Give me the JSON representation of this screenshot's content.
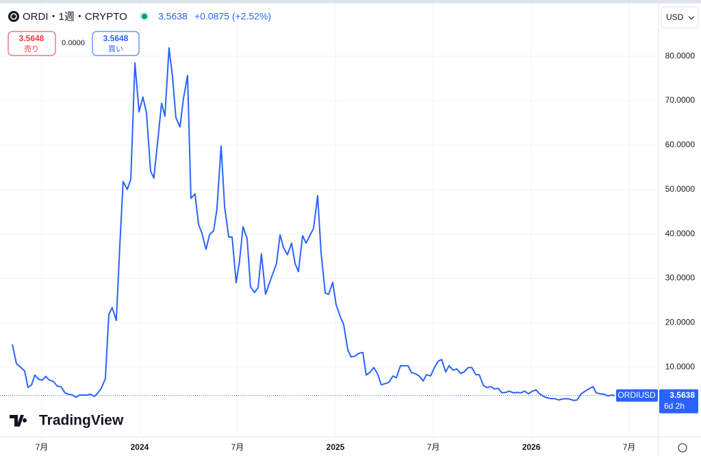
{
  "chart_data": {
    "type": "line",
    "title": "ORDI・1週・CRYPTO",
    "price": "3.5638",
    "change": "+0.0875 (+2.52%)",
    "sell_price": "3.5648",
    "sell_label": "売り",
    "spread": "0.0000",
    "buy_price": "3.5648",
    "buy_label": "買い",
    "currency": "USD",
    "symbol_tag": "ORDIUSD",
    "price_tag": "3.5638",
    "countdown": "6d 2h",
    "brand": "TradingView",
    "color": "#2962ff",
    "x": [
      2023.35,
      2023.371,
      2023.392,
      2023.413,
      2023.43,
      2023.448,
      2023.465,
      2023.486,
      2023.503,
      2023.521,
      2023.538,
      2023.559,
      2023.58,
      2023.598,
      2023.619,
      2023.636,
      2023.657,
      2023.675,
      2023.692,
      2023.713,
      2023.731,
      2023.748,
      2023.769,
      2023.787,
      2023.804,
      2023.825,
      2023.843,
      2023.86,
      2023.881,
      2023.899,
      2023.916,
      2023.937,
      2023.955,
      2023.976,
      2023.997,
      2024.017,
      2024.035,
      2024.056,
      2024.073,
      2024.094,
      2024.112,
      2024.129,
      2024.15,
      2024.168,
      2024.185,
      2024.206,
      2024.224,
      2024.245,
      2024.262,
      2024.283,
      2024.301,
      2024.318,
      2024.339,
      2024.357,
      2024.378,
      2024.395,
      2024.416,
      2024.434,
      2024.455,
      2024.472,
      2024.493,
      2024.51,
      2024.528,
      2024.549,
      2024.566,
      2024.587,
      2024.605,
      2024.622,
      2024.643,
      2024.661,
      2024.678,
      2024.699,
      2024.717,
      2024.734,
      2024.755,
      2024.776,
      2024.794,
      2024.811,
      2024.832,
      2024.85,
      2024.871,
      2024.888,
      2024.909,
      2024.927,
      2024.948,
      2024.965,
      2024.986,
      2025.003,
      2025.024,
      2025.042,
      2025.063,
      2025.08,
      2025.101,
      2025.119,
      2025.14,
      2025.157,
      2025.178,
      2025.196,
      2025.217,
      2025.234,
      2025.255,
      2025.273,
      2025.294,
      2025.311,
      2025.332,
      2025.35,
      2025.371,
      2025.388,
      2025.409,
      2025.427,
      2025.448,
      2025.465,
      2025.486,
      2025.503,
      2025.524,
      2025.542,
      2025.563,
      2025.58,
      2025.601,
      2025.619,
      2025.64,
      2025.657,
      2025.678,
      2025.696,
      2025.717,
      2025.734,
      2025.755,
      2025.773,
      2025.794,
      2025.811,
      2025.832,
      2025.85,
      2025.871,
      2025.888,
      2025.909,
      2025.927,
      2025.948,
      2025.965,
      2025.986,
      2026.003,
      2026.024,
      2026.042,
      2026.063,
      2026.08,
      2026.101,
      2026.119,
      2026.14,
      2026.157,
      2026.178,
      2026.196,
      2026.217,
      2026.234,
      2026.255,
      2026.276,
      2026.294,
      2026.315,
      2026.332,
      2026.353,
      2026.371,
      2026.392,
      2026.409,
      2026.427
    ],
    "values": [
      15.1,
      10.8,
      10.0,
      9.1,
      5.4,
      6.0,
      8.2,
      7.2,
      7.1,
      7.9,
      7.1,
      6.8,
      5.7,
      5.6,
      4.2,
      3.9,
      3.7,
      3.2,
      3.7,
      3.7,
      3.7,
      3.9,
      3.4,
      4.2,
      5.2,
      7.4,
      21.9,
      23.4,
      20.5,
      37.6,
      51.8,
      50.0,
      52.3,
      78.5,
      67.5,
      70.8,
      67.2,
      54.1,
      52.6,
      61.5,
      69.4,
      66.5,
      81.9,
      75.4,
      66.2,
      64.1,
      70.5,
      75.7,
      48.0,
      49.0,
      42.1,
      40.2,
      36.5,
      39.8,
      40.7,
      45.6,
      59.8,
      46.1,
      39.3,
      39.3,
      29.0,
      33.8,
      41.6,
      38.9,
      28.1,
      26.8,
      27.9,
      35.5,
      26.4,
      28.7,
      30.8,
      33.3,
      39.8,
      37.0,
      35.3,
      37.9,
      33.3,
      31.5,
      39.6,
      37.9,
      39.8,
      41.2,
      48.6,
      35.6,
      26.7,
      26.4,
      29.1,
      24.1,
      21.4,
      19.6,
      13.9,
      12.3,
      12.5,
      13.1,
      13.3,
      8.2,
      8.9,
      9.9,
      8.3,
      6.0,
      6.3,
      6.6,
      8.0,
      7.6,
      10.3,
      10.3,
      10.3,
      8.8,
      8.5,
      8.0,
      6.9,
      8.3,
      8.0,
      9.7,
      11.3,
      11.7,
      8.9,
      10.3,
      9.3,
      9.6,
      8.6,
      8.9,
      9.9,
      9.9,
      8.3,
      8.3,
      5.9,
      5.4,
      5.6,
      5.1,
      5.2,
      4.2,
      4.3,
      4.6,
      4.2,
      4.3,
      4.2,
      4.6,
      4.0,
      4.5,
      4.9,
      4.0,
      3.4,
      3.1,
      2.9,
      2.9,
      2.6,
      2.8,
      2.9,
      2.8,
      2.5,
      2.6,
      4.0,
      4.6,
      5.1,
      5.6,
      4.2,
      4.0,
      3.9,
      3.5,
      3.7,
      3.6
    ],
    "xlim": [
      2023.287,
      2026.65
    ],
    "xticks": [
      {
        "value": 2023.5,
        "label": "7月"
      },
      2024,
      {
        "value": 2024.5,
        "label": "7月"
      },
      2025,
      {
        "value": 2025.5,
        "label": "7月"
      },
      2026,
      {
        "value": 2026.5,
        "label": "7月"
      }
    ],
    "ylim": [
      -5.7,
      91.9
    ],
    "yticks": [
      {
        "value": 10,
        "label": "10.0000"
      },
      {
        "value": 20,
        "label": "20.0000"
      },
      {
        "value": 30,
        "label": "30.0000"
      },
      {
        "value": 40,
        "label": "40.0000"
      },
      {
        "value": 50,
        "label": "50.0000"
      },
      {
        "value": 60,
        "label": "60.0000"
      },
      {
        "value": 70,
        "label": "70.0000"
      },
      {
        "value": 80,
        "label": "80.0000"
      }
    ],
    "grid": true
  }
}
